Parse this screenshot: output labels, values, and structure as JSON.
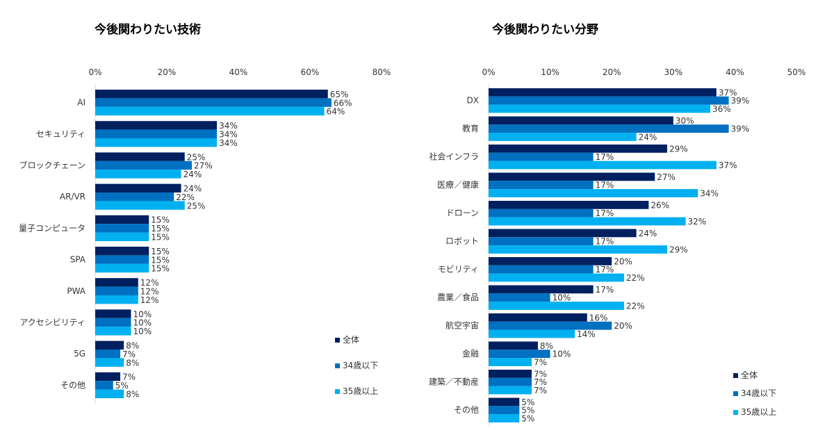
{
  "colors": {
    "all": "#002060",
    "under34": "#0070c0",
    "over35": "#00b0f0"
  },
  "chart_data": [
    {
      "type": "bar",
      "orientation": "horizontal",
      "title": "今後関わりたい技術",
      "xlim": [
        0,
        80
      ],
      "ticks": [
        "0%",
        "20%",
        "40%",
        "60%",
        "80%"
      ],
      "value_suffix": "%",
      "categories": [
        "AI",
        "セキュリティ",
        "ブロックチェーン",
        "AR/VR",
        "量子コンピュータ",
        "SPA",
        "PWA",
        "アクセシビリティ",
        "5G",
        "その他"
      ],
      "series": [
        {
          "name": "全体",
          "values": [
            65,
            34,
            25,
            24,
            15,
            15,
            12,
            10,
            8,
            7
          ]
        },
        {
          "name": "34歳以下",
          "values": [
            66,
            34,
            27,
            22,
            15,
            15,
            12,
            10,
            7,
            5
          ]
        },
        {
          "name": "35歳以上",
          "values": [
            64,
            34,
            24,
            25,
            15,
            15,
            12,
            10,
            8,
            8
          ]
        }
      ],
      "legend": "bottom-right",
      "grid": false
    },
    {
      "type": "bar",
      "orientation": "horizontal",
      "title": "今後関わりたい分野",
      "xlim": [
        0,
        50
      ],
      "ticks": [
        "0%",
        "10%",
        "20%",
        "30%",
        "40%",
        "50%"
      ],
      "value_suffix": "%",
      "categories": [
        "DX",
        "教育",
        "社会インフラ",
        "医療／健康",
        "ドローン",
        "ロボット",
        "モビリティ",
        "農業／食品",
        "航空宇宙",
        "金融",
        "建築／不動産",
        "その他"
      ],
      "series": [
        {
          "name": "全体",
          "values": [
            37,
            30,
            29,
            27,
            26,
            24,
            20,
            17,
            16,
            8,
            7,
            5
          ]
        },
        {
          "name": "34歳以下",
          "values": [
            39,
            39,
            17,
            17,
            17,
            17,
            17,
            10,
            20,
            10,
            7,
            5
          ]
        },
        {
          "name": "35歳以上",
          "values": [
            36,
            24,
            37,
            34,
            32,
            29,
            22,
            22,
            14,
            7,
            7,
            5
          ]
        }
      ],
      "legend": "bottom-right",
      "grid": false
    }
  ]
}
